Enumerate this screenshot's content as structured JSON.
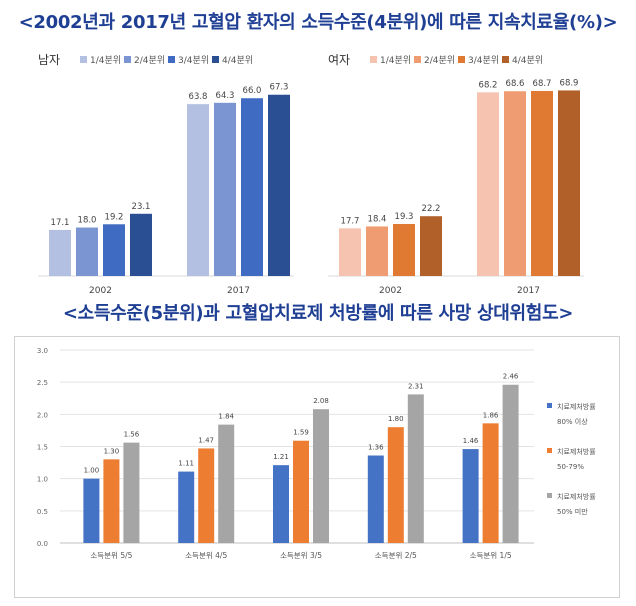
{
  "titles": {
    "top": "<2002년과 2017년 고혈압 환자의 소득수준(4분위)에 따른 지속치료율(%)>",
    "bottom": "<소득수준(5분위)과 고혈압치료제 처방률에 따른 사망 상대위험도>"
  },
  "chart_data": [
    {
      "type": "bar",
      "title": "남자",
      "categories": [
        "2002",
        "2017"
      ],
      "series": [
        {
          "name": "1/4분위",
          "color": "#b4c0e2",
          "values": [
            17.1,
            63.8
          ]
        },
        {
          "name": "2/4분위",
          "color": "#7b95d3",
          "values": [
            18.0,
            64.3
          ]
        },
        {
          "name": "3/4분위",
          "color": "#3f6bc2",
          "values": [
            19.2,
            66.0
          ]
        },
        {
          "name": "4/4분위",
          "color": "#2b4f93",
          "values": [
            23.1,
            67.3
          ]
        }
      ],
      "ylim": [
        0,
        75
      ],
      "grid": false,
      "legend": "top"
    },
    {
      "type": "bar",
      "title": "여자",
      "categories": [
        "2002",
        "2017"
      ],
      "series": [
        {
          "name": "1/4분위",
          "color": "#f5c3b0",
          "values": [
            17.7,
            68.2
          ]
        },
        {
          "name": "2/4분위",
          "color": "#f09c72",
          "values": [
            18.4,
            68.6
          ]
        },
        {
          "name": "3/4분위",
          "color": "#e07a32",
          "values": [
            19.3,
            68.7
          ]
        },
        {
          "name": "4/4분위",
          "color": "#b2602a",
          "values": [
            22.2,
            68.9
          ]
        }
      ],
      "ylim": [
        0,
        75
      ],
      "grid": false,
      "legend": "top"
    },
    {
      "type": "bar",
      "categories": [
        "소득분위 5/5",
        "소득분위 4/5",
        "소득분위 3/5",
        "소득분위 2/5",
        "소득분위 1/5"
      ],
      "series": [
        {
          "name": "치료제처방률 80% 이상",
          "name_lines": [
            "치료제처방률",
            "80% 이상"
          ],
          "color": "#4472c4",
          "values": [
            1.0,
            1.11,
            1.21,
            1.36,
            1.46
          ]
        },
        {
          "name": "치료제처방률 50-79%",
          "name_lines": [
            "치료제처방률",
            "50-79%"
          ],
          "color": "#ed7d31",
          "values": [
            1.3,
            1.47,
            1.59,
            1.8,
            1.86
          ]
        },
        {
          "name": "치료제처방률 50% 미만",
          "name_lines": [
            "치료제처방률",
            "50% 미만"
          ],
          "color": "#a5a5a5",
          "values": [
            1.56,
            1.84,
            2.08,
            2.31,
            2.46
          ]
        }
      ],
      "ylim": [
        0,
        3.0
      ],
      "yticks": [
        "0.0",
        "0.5",
        "1.0",
        "1.5",
        "2.0",
        "2.5",
        "3.0"
      ],
      "grid": true,
      "legend": "right"
    }
  ]
}
